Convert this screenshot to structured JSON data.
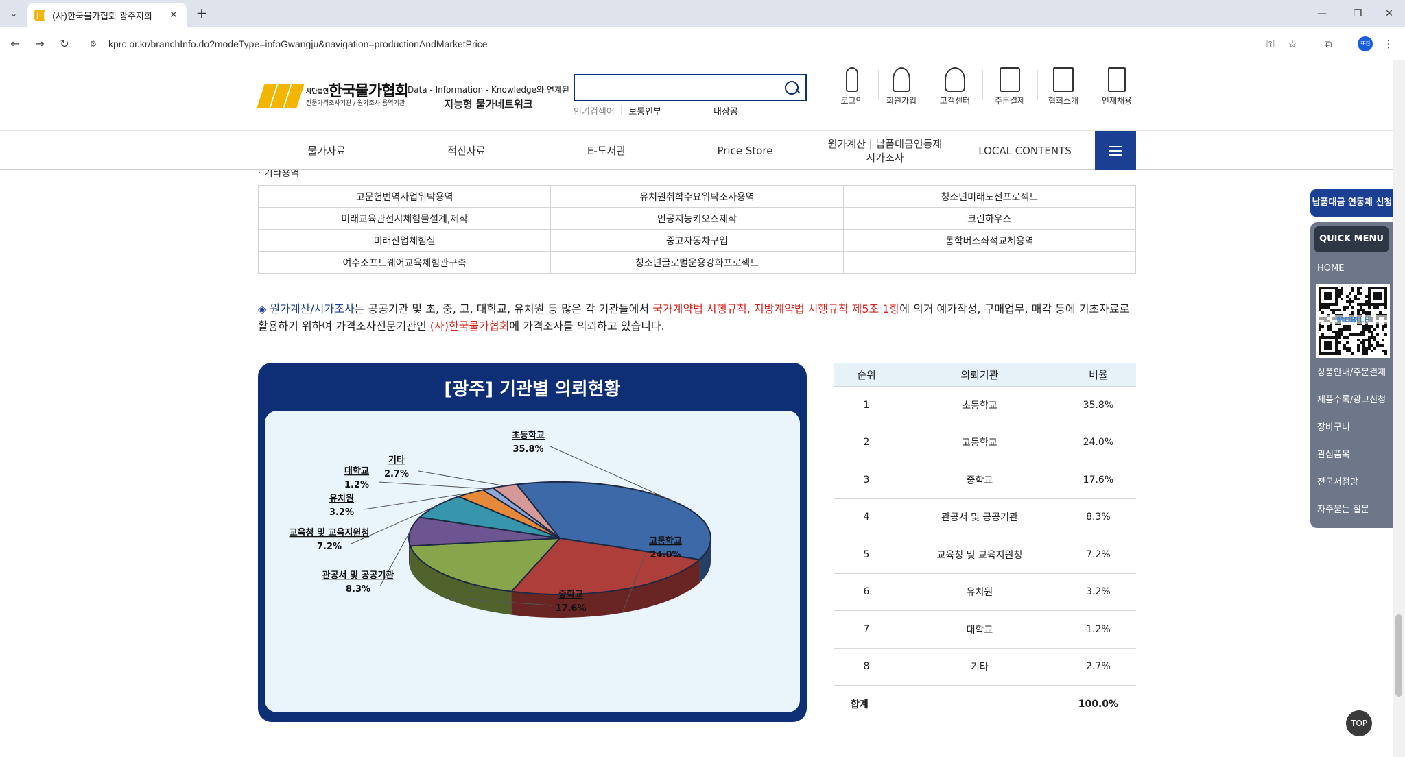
{
  "browser": {
    "tab_title": "(사)한국물가협회 광주지회",
    "url": "kprc.or.kr/branchInfo.do?modeType=infoGwangju&navigation=productionAndMarketPrice",
    "profile_initials": "표진"
  },
  "header": {
    "logo_name": "한국물가협회",
    "logo_prefix": "사단법인",
    "logo_sub": "전문가격조사기관 / 원가조사 용역기관",
    "slogan_line1": "Data - Information - Knowledge와 연계된",
    "slogan_line2": "지능형 물가네트워크",
    "search_placeholder": "",
    "popular_label": "인기검색어",
    "popular_keywords": [
      "보통인부",
      "내장공"
    ],
    "top_menu": [
      "로그인",
      "회원가입",
      "고객센터",
      "주문결제",
      "협회소개",
      "인재채용"
    ]
  },
  "gnb": [
    "물가자료",
    "적산자료",
    "E-도서관",
    "Price Store",
    "원가계산 | 납품대금연동제\n시가조사",
    "LOCAL CONTENTS"
  ],
  "content": {
    "partial_title": "· 기타용역",
    "service_table": [
      [
        "고문헌번역사업위탁용역",
        "유치원취학수요위탁조사용역",
        "청소년미래도전프로젝트"
      ],
      [
        "미래교육관전시체험물설계,제작",
        "인공지능키오스제작",
        "크린하우스"
      ],
      [
        "미래산업체험실",
        "중고자동차구입",
        "통학버스좌석교체용역"
      ],
      [
        "여수소프트웨어교육체험관구축",
        "청소년글로벌운용강화프로젝트",
        ""
      ]
    ],
    "desc": {
      "diamond": "◈ ",
      "term": "원가계산/시가조사",
      "p1": "는 공공기관 및 초, 중, 고, 대학교, 유치원 등 많은 각 기관들에서 ",
      "law1": "국가계약법 시행규칙",
      "comma": ", ",
      "law2": "지방계약법 시행규칙 제5조 1항",
      "p2": "에 의거 예가작성, 구매업무, 매각 등에 기초자료로 활용하기 위하여 가격조사전문기관인 ",
      "org": "(사)한국물가협회",
      "p3": "에 가격조사를 의뢰하고 있습니다."
    }
  },
  "chart_data": {
    "type": "pie",
    "title": "[광주] 기관별 의뢰현황",
    "slices": [
      {
        "label": "초등학교",
        "value": 35.8,
        "color": "#3c6aa8"
      },
      {
        "label": "고등학교",
        "value": 24.0,
        "color": "#ad3e3a"
      },
      {
        "label": "중학교",
        "value": 17.6,
        "color": "#87a54b"
      },
      {
        "label": "관공서 및 공공기관",
        "value": 8.3,
        "color": "#6d5591"
      },
      {
        "label": "교육청 및 교육지원청",
        "value": 7.2,
        "color": "#3795ac"
      },
      {
        "label": "유치원",
        "value": 3.2,
        "color": "#e5883a"
      },
      {
        "label": "대학교",
        "value": 1.2,
        "color": "#8ea9d8"
      },
      {
        "label": "기타",
        "value": 2.7,
        "color": "#d59a98"
      }
    ],
    "value_suffix": "%"
  },
  "ratio_table": {
    "headers": [
      "순위",
      "의뢰기관",
      "비율"
    ],
    "rows": [
      [
        "1",
        "초등학교",
        "35.8%"
      ],
      [
        "2",
        "고등학교",
        "24.0%"
      ],
      [
        "3",
        "중학교",
        "17.6%"
      ],
      [
        "4",
        "관공서 및 공공기관",
        "8.3%"
      ],
      [
        "5",
        "교육청 및 교육지원청",
        "7.2%"
      ],
      [
        "6",
        "유치원",
        "3.2%"
      ],
      [
        "7",
        "대학교",
        "1.2%"
      ],
      [
        "8",
        "기타",
        "2.7%"
      ]
    ],
    "total": [
      "합계",
      "",
      "100.0%"
    ]
  },
  "floating": {
    "apply_label": "납품대금 연동제 신청",
    "quick_title": "QUICK MENU",
    "home": "HOME",
    "qr_label": "MOBILE",
    "items": [
      "상품안내/주문결제",
      "제품수록/광고신청",
      "장바구니",
      "관심품목",
      "전국서점망",
      "자주묻는 질문"
    ],
    "top_label": "TOP"
  }
}
